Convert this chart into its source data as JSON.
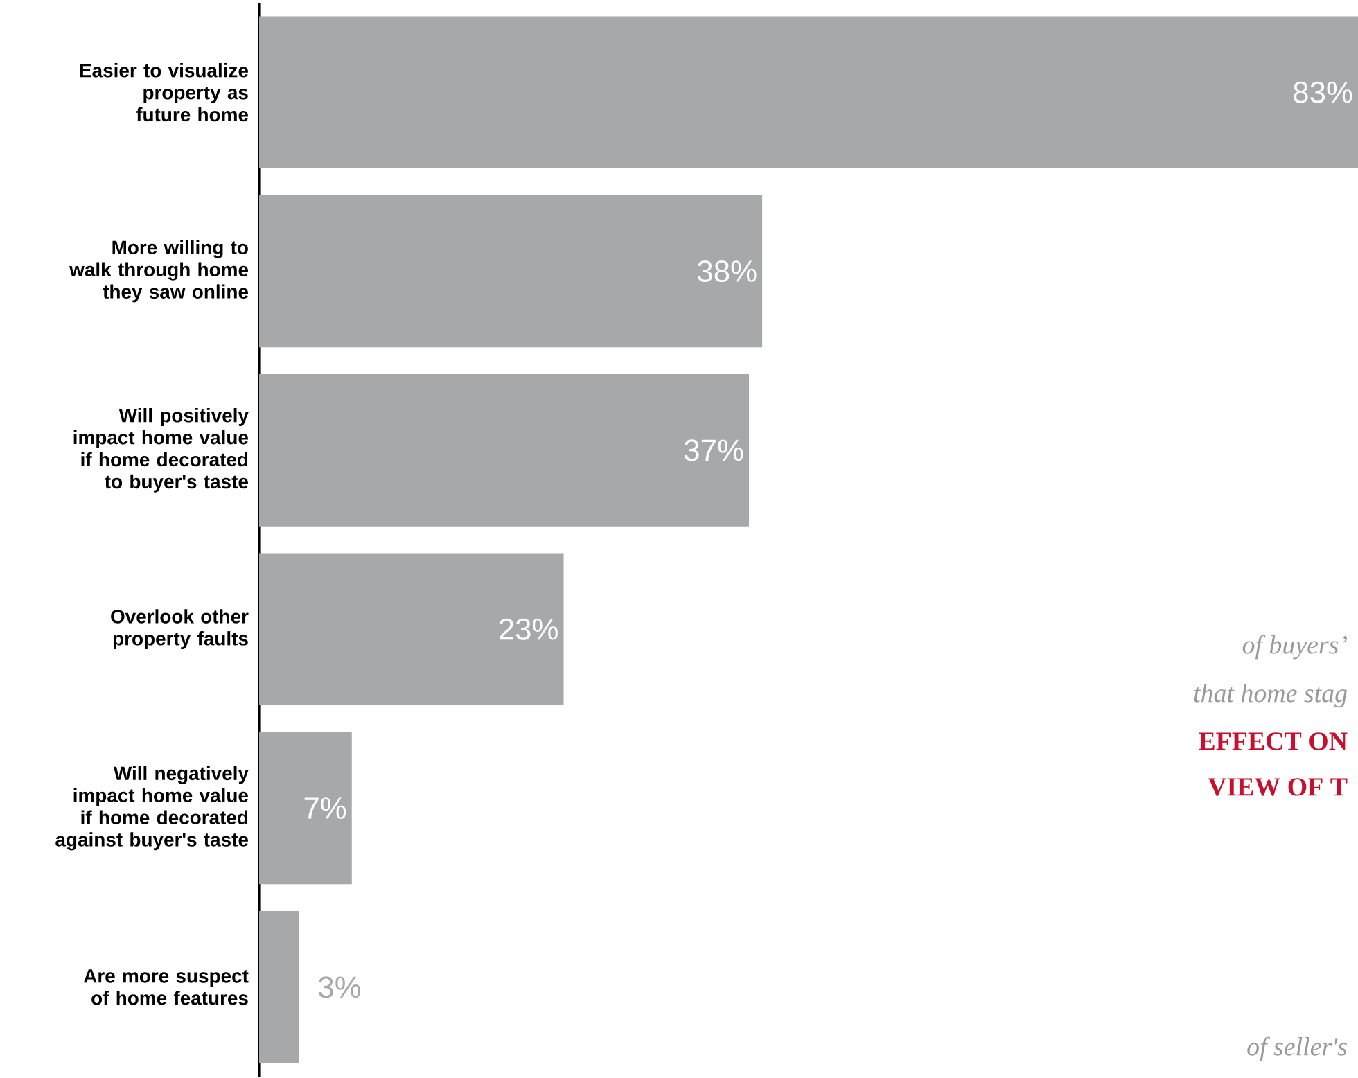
{
  "chart_data": {
    "type": "bar",
    "orientation": "horizontal",
    "categories": [
      "Easier to visualize property as future home",
      "More willing to walk through home they saw online",
      "Will positively impact home value if home decorated to buyer's taste",
      "Overlook other property faults",
      "Will negatively impact home value if home decorated against buyer's taste",
      "Are more suspect of home features"
    ],
    "values": [
      83,
      38,
      37,
      23,
      7,
      3
    ],
    "value_labels": [
      "83%",
      "38%",
      "37%",
      "23%",
      "7%",
      "3%"
    ],
    "color": "#a7a8aa",
    "xlim": [
      0,
      83
    ],
    "tick_labels": "y",
    "annotations": [
      "of buyers’",
      "that home stag",
      "EFFECT ON",
      "VIEW OF T",
      "of seller's"
    ]
  }
}
